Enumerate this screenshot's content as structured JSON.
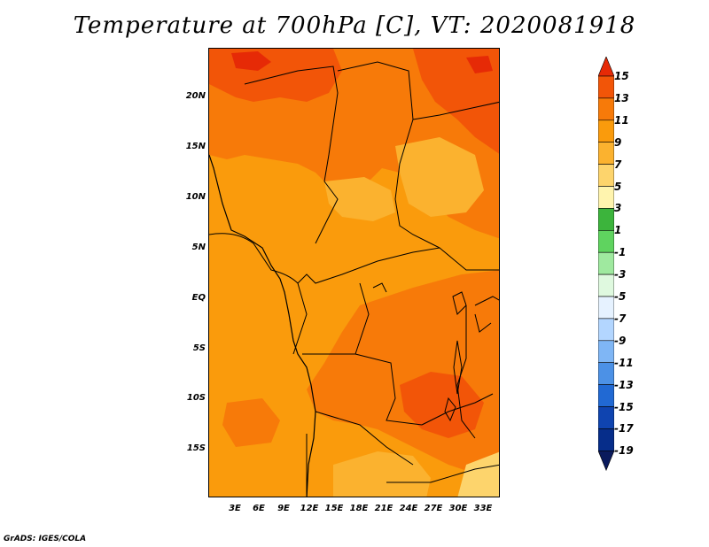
{
  "title": "Temperature at 700hPa [C], VT: 2020081918",
  "credit": "GrADS: IGES/COLA",
  "lat_labels": [
    "20N",
    "15N",
    "10N",
    "5N",
    "EQ",
    "5S",
    "10S",
    "15S"
  ],
  "lon_labels": [
    "3E",
    "6E",
    "9E",
    "12E",
    "15E",
    "18E",
    "21E",
    "24E",
    "27E",
    "30E",
    "33E"
  ],
  "colorbar": {
    "labels": [
      "15",
      "13",
      "11",
      "9",
      "7",
      "5",
      "3",
      "1",
      "-1",
      "-3",
      "-5",
      "-7",
      "-9",
      "-11",
      "-13",
      "-15",
      "-17",
      "-19"
    ],
    "colors": [
      "#e62a06",
      "#f25508",
      "#f77a09",
      "#fa9b0c",
      "#fbb22f",
      "#fdd46c",
      "#fff4ae",
      "#3cb43c",
      "#5fd35f",
      "#9fe99f",
      "#dff9df",
      "#e6f2ff",
      "#b3d6ff",
      "#7fb6f5",
      "#4c91e6",
      "#2169d3",
      "#0f44b0",
      "#062d8a",
      "#0a1a5c"
    ]
  },
  "colors": {
    "warm_13": "#f25508",
    "warm_11": "#f77a09",
    "warm_9": "#fa9b0c",
    "warm_7": "#fbb22f",
    "warm_5": "#fdd46c",
    "hot_15": "#e62a06",
    "borders": "#000000"
  }
}
